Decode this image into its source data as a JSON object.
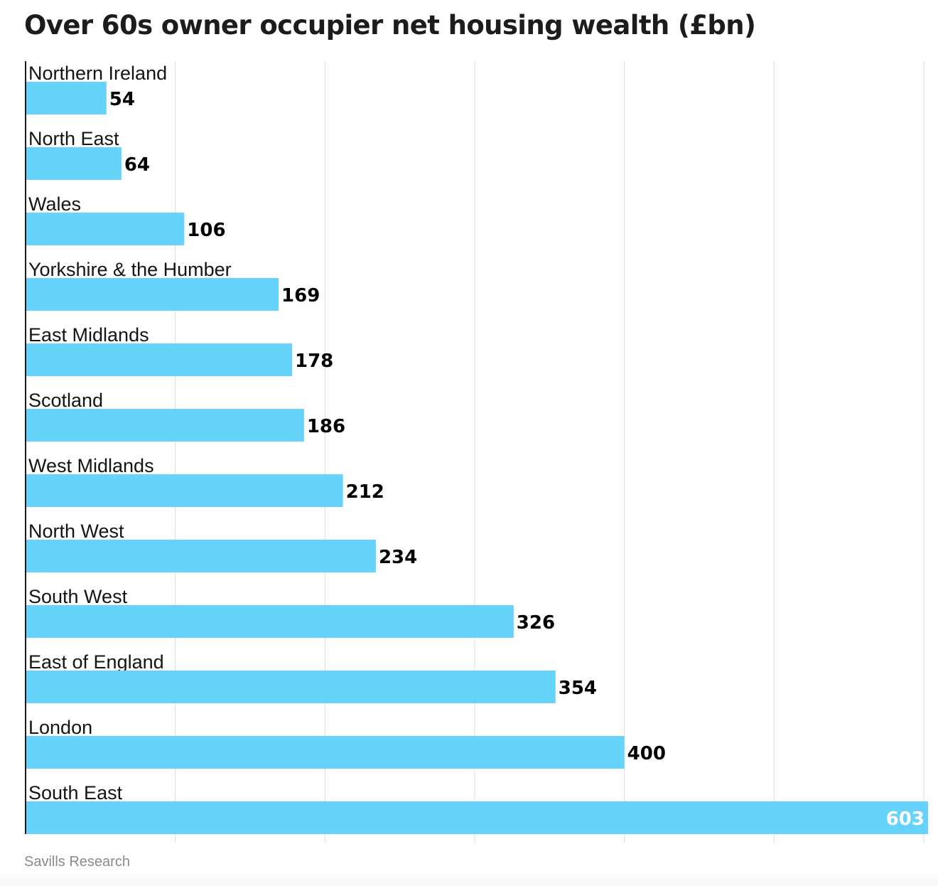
{
  "chart_data": {
    "type": "bar",
    "orientation": "horizontal",
    "title": "Over 60s owner occupier net housing wealth (£bn)",
    "categories": [
      "Northern Ireland",
      "North East",
      "Wales",
      "Yorkshire & the Humber",
      "East Midlands",
      "Scotland",
      "West Midlands",
      "North West",
      "South West",
      "East of England",
      "London",
      "South East"
    ],
    "values": [
      54,
      64,
      106,
      169,
      178,
      186,
      212,
      234,
      326,
      354,
      400,
      603
    ],
    "xlim": [
      0,
      600
    ],
    "grid": true,
    "bar_color": "#66d3fa",
    "label_color": "#000000",
    "inside_label_color": "#ffffff"
  },
  "source": "Savills Research"
}
